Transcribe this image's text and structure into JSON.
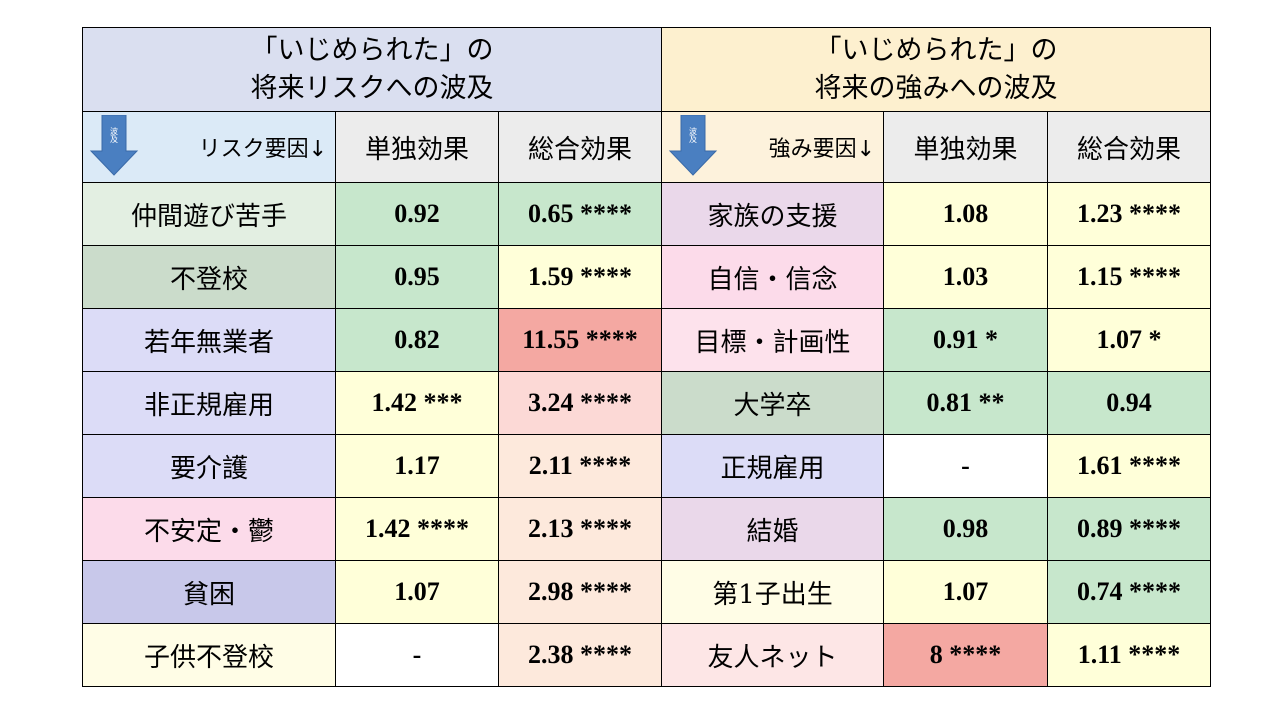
{
  "left_title": [
    "「いじめられた」の",
    "将来リスクへの波及"
  ],
  "right_title": [
    "「いじめられた」の",
    "将来の強みへの波及"
  ],
  "left_factor_header": "リスク要因↓",
  "right_factor_header": "強み要因↓",
  "arrow_label": "波及",
  "col_single": "単独効果",
  "col_total": "総合効果",
  "colors": {
    "title_left": "#dadff0",
    "title_right": "#fdf0cf",
    "head_left_factor": "#dbeaf7",
    "head_right_factor": "#fdf2dc",
    "head_cols": "#ececec",
    "arrow": "#4a7fc1",
    "arrow_text": "#ffffff"
  },
  "rows": [
    {
      "left": {
        "factor": "仲間遊び苦手",
        "factor_bg": "#e3efe2",
        "single": "0.92",
        "single_bg": "#c7e7cc",
        "total": "0.65 ****",
        "total_bg": "#c7e7cc"
      },
      "right": {
        "factor": "家族の支援",
        "factor_bg": "#ead8ea",
        "single": "1.08",
        "single_bg": "#ffffd9",
        "total": "1.23 ****",
        "total_bg": "#ffffd9"
      }
    },
    {
      "left": {
        "factor": "不登校",
        "factor_bg": "#cbdccb",
        "single": "0.95",
        "single_bg": "#c7e7cc",
        "total": "1.59 ****",
        "total_bg": "#ffffd9"
      },
      "right": {
        "factor": "自信・信念",
        "factor_bg": "#fcdbea",
        "single": "1.03",
        "single_bg": "#ffffd9",
        "total": "1.15 ****",
        "total_bg": "#ffffd9"
      }
    },
    {
      "left": {
        "factor": "若年無業者",
        "factor_bg": "#dcdcf7",
        "single": "0.82",
        "single_bg": "#c7e7cc",
        "total": "11.55 ****",
        "total_bg": "#f4a8a2"
      },
      "right": {
        "factor": "目標・計画性",
        "factor_bg": "#fde2ec",
        "single": "0.91 *",
        "single_bg": "#c7e7cc",
        "total": "1.07 *",
        "total_bg": "#ffffd9"
      }
    },
    {
      "left": {
        "factor": "非正規雇用",
        "factor_bg": "#dcdcf7",
        "single": "1.42 ***",
        "single_bg": "#ffffd9",
        "total": "3.24 ****",
        "total_bg": "#fcd9d6"
      },
      "right": {
        "factor": "大学卒",
        "factor_bg": "#cbdccb",
        "single": "0.81 **",
        "single_bg": "#c7e7cc",
        "total": "0.94",
        "total_bg": "#c7e7cc"
      }
    },
    {
      "left": {
        "factor": "要介護",
        "factor_bg": "#dcdcf7",
        "single": "1.17",
        "single_bg": "#ffffd9",
        "total": "2.11 ****",
        "total_bg": "#fde9dc"
      },
      "right": {
        "factor": "正規雇用",
        "factor_bg": "#dcdcf7",
        "single": "-",
        "single_bg": "#ffffff",
        "total": "1.61 ****",
        "total_bg": "#ffffd9"
      }
    },
    {
      "left": {
        "factor": "不安定・鬱",
        "factor_bg": "#fcdbea",
        "single": "1.42 ****",
        "single_bg": "#ffffd9",
        "total": "2.13 ****",
        "total_bg": "#fde9dc"
      },
      "right": {
        "factor": "結婚",
        "factor_bg": "#ead8ea",
        "single": "0.98",
        "single_bg": "#c7e7cc",
        "total": "0.89 ****",
        "total_bg": "#c7e7cc"
      }
    },
    {
      "left": {
        "factor": "貧困",
        "factor_bg": "#c8c8ea",
        "single": "1.07",
        "single_bg": "#ffffd9",
        "total": "2.98 ****",
        "total_bg": "#fde9dc"
      },
      "right": {
        "factor": "第1子出生",
        "factor_bg": "#fffde6",
        "single": "1.07",
        "single_bg": "#ffffd9",
        "total": "0.74 ****",
        "total_bg": "#c7e7cc"
      }
    },
    {
      "left": {
        "factor": "子供不登校",
        "factor_bg": "#fffde6",
        "single": "-",
        "single_bg": "#ffffff",
        "total": "2.38 ****",
        "total_bg": "#fde9dc"
      },
      "right": {
        "factor": "友人ネット",
        "factor_bg": "#fde6e6",
        "single": "8 ****",
        "single_bg": "#f4a8a2",
        "total": "1.11 ****",
        "total_bg": "#ffffd9"
      }
    }
  ]
}
